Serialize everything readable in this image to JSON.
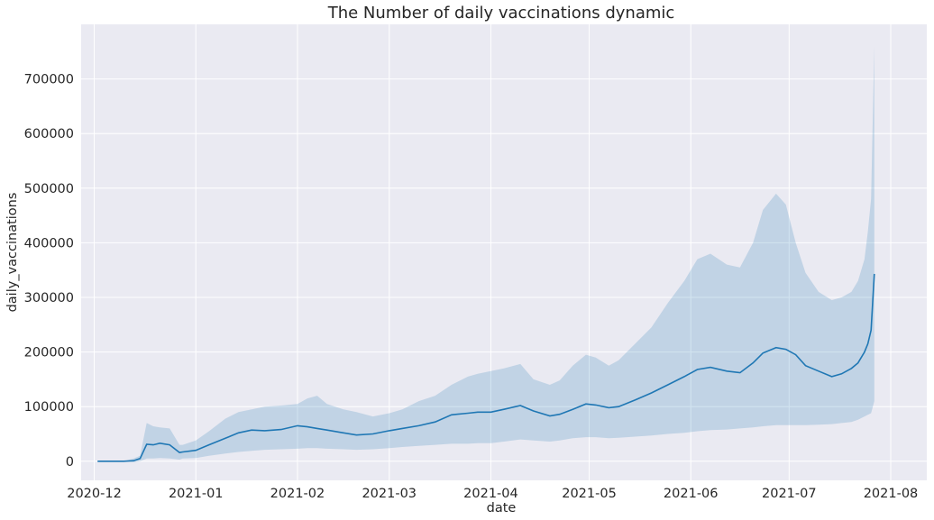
{
  "chart_data": {
    "type": "line",
    "title": "The Number of daily vaccinations dynamic",
    "xlabel": "date",
    "ylabel": "daily_vaccinations",
    "x_ticks": [
      "2020-12",
      "2021-01",
      "2021-02",
      "2021-03",
      "2021-04",
      "2021-05",
      "2021-06",
      "2021-07",
      "2021-08"
    ],
    "y_ticks": [
      0,
      100000,
      200000,
      300000,
      400000,
      500000,
      600000,
      700000
    ],
    "y_tick_labels": [
      "0",
      "100000",
      "200000",
      "300000",
      "400000",
      "500000",
      "600000",
      "700000"
    ],
    "xlim": [
      "2020-11-27",
      "2021-08-12"
    ],
    "ylim": [
      -35000,
      800000
    ],
    "grid": true,
    "background": "#eaeaf2",
    "line_color": "#1f77b4",
    "band_color": "#1f77b4",
    "series": [
      {
        "x": [
          "2020-12-02",
          "2020-12-08",
          "2020-12-10",
          "2020-12-13",
          "2020-12-15",
          "2020-12-17",
          "2020-12-19",
          "2020-12-21",
          "2020-12-24",
          "2020-12-27",
          "2020-12-28",
          "2021-01-01",
          "2021-01-05",
          "2021-01-10",
          "2021-01-14",
          "2021-01-18",
          "2021-01-22",
          "2021-01-27",
          "2021-02-01",
          "2021-02-04",
          "2021-02-07",
          "2021-02-10",
          "2021-02-15",
          "2021-02-19",
          "2021-02-24",
          "2021-03-01",
          "2021-03-05",
          "2021-03-10",
          "2021-03-15",
          "2021-03-20",
          "2021-03-25",
          "2021-03-28",
          "2021-04-01",
          "2021-04-05",
          "2021-04-10",
          "2021-04-14",
          "2021-04-19",
          "2021-04-22",
          "2021-04-26",
          "2021-04-30",
          "2021-05-03",
          "2021-05-07",
          "2021-05-10",
          "2021-05-15",
          "2021-05-20",
          "2021-05-25",
          "2021-05-30",
          "2021-06-03",
          "2021-06-07",
          "2021-06-12",
          "2021-06-16",
          "2021-06-20",
          "2021-06-23",
          "2021-06-27",
          "2021-06-30",
          "2021-07-03",
          "2021-07-06",
          "2021-07-10",
          "2021-07-14",
          "2021-07-17",
          "2021-07-20",
          "2021-07-22",
          "2021-07-24",
          "2021-07-25",
          "2021-07-26",
          "2021-07-27"
        ],
        "mean": [
          0,
          0,
          0,
          1000,
          5000,
          31000,
          30000,
          33000,
          30000,
          16000,
          17000,
          20000,
          30000,
          42000,
          52000,
          57000,
          56000,
          58000,
          65000,
          63000,
          60000,
          57000,
          52000,
          48000,
          50000,
          56000,
          60000,
          65000,
          72000,
          85000,
          88000,
          90000,
          90000,
          95000,
          102000,
          92000,
          83000,
          86000,
          95000,
          105000,
          103000,
          98000,
          100000,
          112000,
          125000,
          140000,
          155000,
          168000,
          172000,
          165000,
          162000,
          180000,
          198000,
          208000,
          205000,
          195000,
          175000,
          165000,
          155000,
          160000,
          170000,
          180000,
          200000,
          215000,
          240000,
          343000
        ],
        "lower": [
          0,
          0,
          0,
          -2000,
          0,
          5000,
          5000,
          6000,
          5000,
          3000,
          5000,
          6000,
          10000,
          14000,
          17000,
          19000,
          21000,
          22000,
          23000,
          24000,
          24000,
          23000,
          22000,
          21000,
          22000,
          24000,
          26000,
          28000,
          30000,
          32000,
          32000,
          33000,
          33000,
          36000,
          40000,
          38000,
          36000,
          38000,
          42000,
          44000,
          44000,
          42000,
          43000,
          45000,
          47000,
          50000,
          52000,
          55000,
          57000,
          58000,
          60000,
          62000,
          64000,
          66000,
          66000,
          66000,
          66000,
          67000,
          68000,
          70000,
          72000,
          76000,
          82000,
          85000,
          88000,
          110000
        ],
        "upper": [
          0,
          0,
          0,
          5000,
          10000,
          70000,
          64000,
          62000,
          60000,
          30000,
          30000,
          38000,
          55000,
          78000,
          90000,
          95000,
          100000,
          102000,
          105000,
          115000,
          120000,
          105000,
          95000,
          90000,
          82000,
          88000,
          95000,
          110000,
          120000,
          140000,
          155000,
          160000,
          165000,
          170000,
          178000,
          150000,
          140000,
          148000,
          175000,
          195000,
          190000,
          175000,
          185000,
          215000,
          245000,
          290000,
          330000,
          370000,
          380000,
          360000,
          355000,
          400000,
          460000,
          490000,
          470000,
          400000,
          345000,
          310000,
          295000,
          300000,
          310000,
          330000,
          370000,
          420000,
          480000,
          760000
        ]
      }
    ]
  }
}
